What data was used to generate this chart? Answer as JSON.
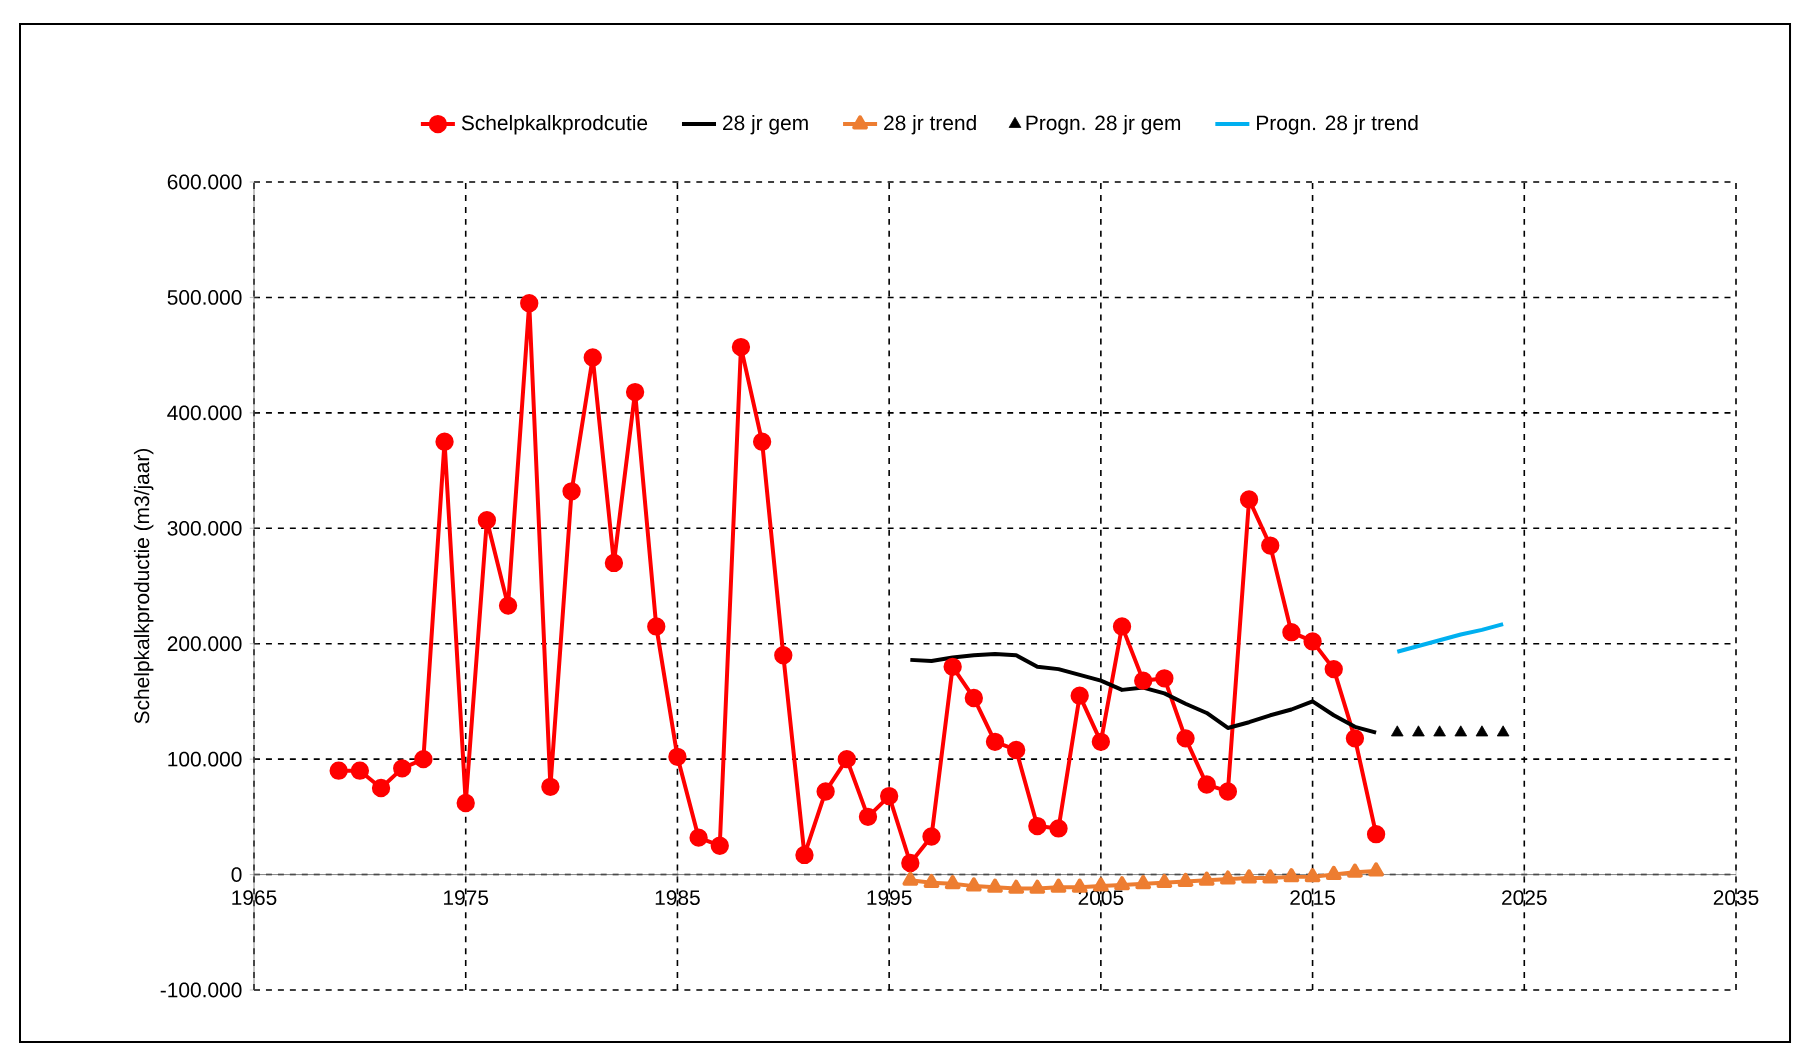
{
  "chart_data": {
    "type": "line",
    "ylabel": "Schelpkalkproductie (m3/jaar)",
    "xlim": [
      1965,
      2035
    ],
    "xticks": [
      1965,
      1975,
      1985,
      1995,
      2005,
      2015,
      2025,
      2035
    ],
    "ylim": [
      -100000,
      600000
    ],
    "yticks": [
      {
        "value": -100000,
        "label": "-100.000"
      },
      0,
      {
        "value": 100000,
        "label": "100.000"
      },
      {
        "value": 200000,
        "label": "200.000"
      },
      {
        "value": 300000,
        "label": "300.000"
      },
      {
        "value": 400000,
        "label": "400.000"
      },
      {
        "value": 500000,
        "label": "500.000"
      },
      {
        "value": 600000,
        "label": "600.000"
      }
    ],
    "grid": true,
    "legend": "top",
    "series": [
      {
        "name": "Schelpkalkprodcutie",
        "color": "#ff0000",
        "marker": "circle",
        "x": [
          1969,
          1970,
          1971,
          1972,
          1973,
          1974,
          1975,
          1976,
          1977,
          1978,
          1979,
          1980,
          1981,
          1982,
          1983,
          1984,
          1985,
          1986,
          1987,
          1988,
          1989,
          1990,
          1991,
          1992,
          1993,
          1994,
          1995,
          1996,
          1997,
          1998,
          1999,
          2000,
          2001,
          2002,
          2003,
          2004,
          2005,
          2006,
          2007,
          2008,
          2009,
          2010,
          2011,
          2012,
          2013,
          2014,
          2015,
          2016,
          2017,
          2018
        ],
        "values": [
          90000,
          90000,
          75000,
          92000,
          100000,
          375000,
          62000,
          307000,
          233000,
          495000,
          76000,
          332000,
          448000,
          270000,
          418000,
          215000,
          102000,
          32000,
          25000,
          457000,
          375000,
          190000,
          17000,
          72000,
          100000,
          50000,
          68000,
          10000,
          33000,
          180000,
          153000,
          115000,
          108000,
          42000,
          40000,
          155000,
          115000,
          215000,
          168000,
          170000,
          118000,
          78000,
          72000,
          325000,
          285000,
          210000,
          202000,
          178000,
          118000,
          35000
        ]
      },
      {
        "name": "28 jr gem",
        "color": "#000000",
        "marker": "none",
        "x": [
          1996,
          1997,
          1998,
          1999,
          2000,
          2001,
          2002,
          2003,
          2004,
          2005,
          2006,
          2007,
          2008,
          2009,
          2010,
          2011,
          2012,
          2013,
          2014,
          2015,
          2016,
          2017,
          2018
        ],
        "values": [
          186000,
          185000,
          188000,
          190000,
          191000,
          190000,
          180000,
          178000,
          173000,
          168000,
          160000,
          162000,
          157000,
          148000,
          140000,
          127000,
          132000,
          138000,
          143000,
          150000,
          138000,
          128000,
          123000
        ]
      },
      {
        "name": "28 jr trend",
        "color": "#ed7d31",
        "marker": "triangle",
        "x": [
          1996,
          1997,
          1998,
          1999,
          2000,
          2001,
          2002,
          2003,
          2004,
          2005,
          2006,
          2007,
          2008,
          2009,
          2010,
          2011,
          2012,
          2013,
          2014,
          2015,
          2016,
          2017,
          2018
        ],
        "values": [
          -5000,
          -7000,
          -8000,
          -10000,
          -11000,
          -12000,
          -12000,
          -11000,
          -11000,
          -10000,
          -9000,
          -8000,
          -7000,
          -6000,
          -5000,
          -4000,
          -3000,
          -3000,
          -2000,
          -2000,
          0,
          2000,
          3000
        ]
      },
      {
        "name": "Progn. 28 jr gem",
        "color": "#000000",
        "type": "scatter",
        "marker": "triangle",
        "x": [
          2019,
          2020,
          2021,
          2022,
          2023,
          2024
        ],
        "values": [
          123000,
          123000,
          123000,
          123000,
          123000,
          123000
        ]
      },
      {
        "name": "Progn. 28 jr trend",
        "color": "#00b0f0",
        "marker": "none",
        "x": [
          2019,
          2020,
          2021,
          2022,
          2023,
          2024
        ],
        "values": [
          193000,
          198000,
          203000,
          208000,
          212000,
          217000
        ]
      }
    ]
  }
}
